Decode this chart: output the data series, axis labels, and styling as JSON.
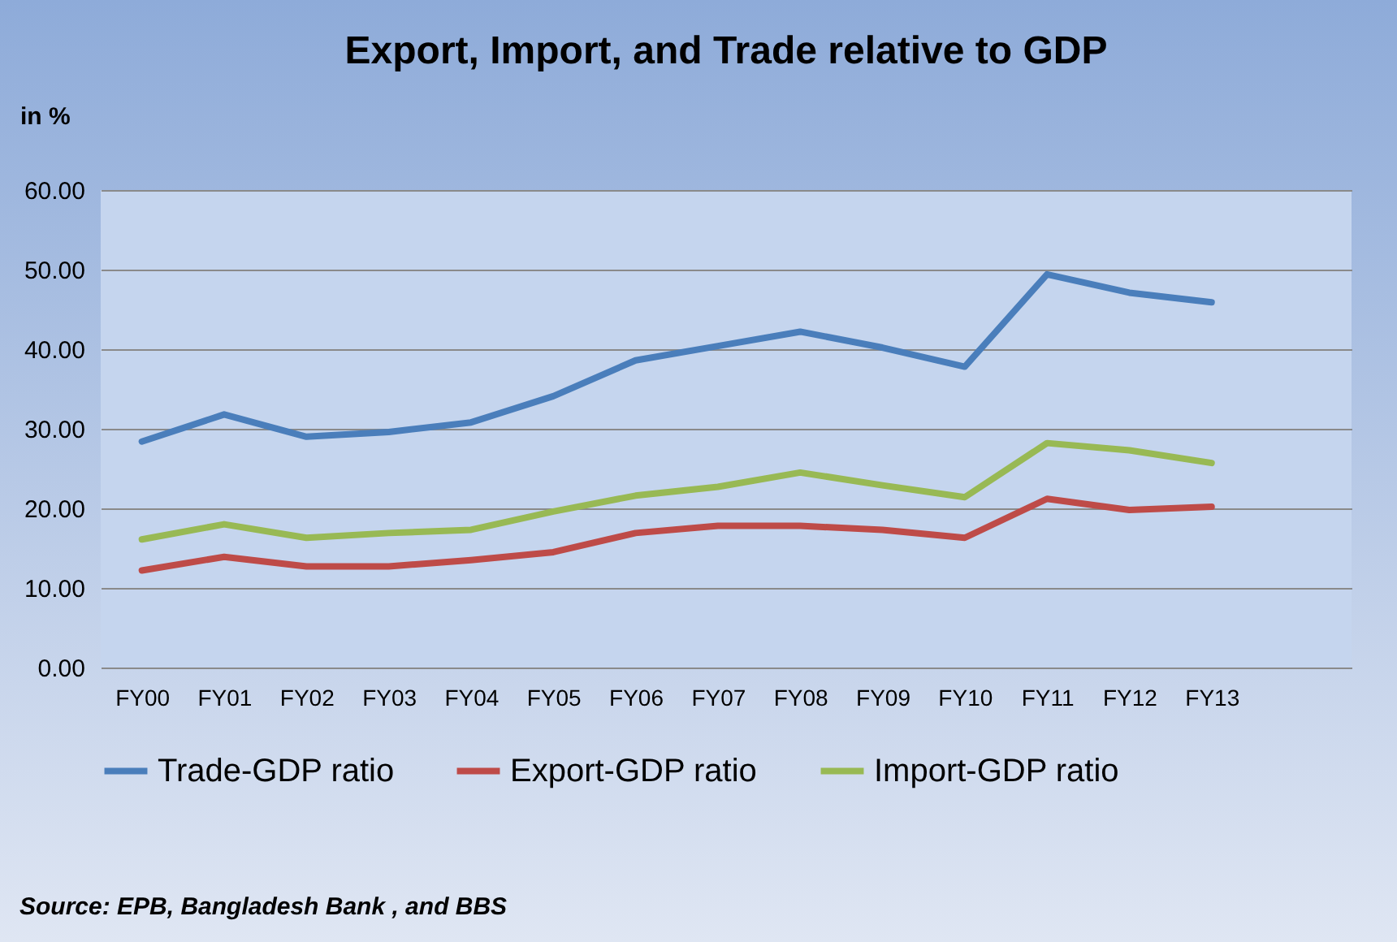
{
  "chart_data": {
    "type": "line",
    "title": "Export, Import, and Trade relative to GDP",
    "ylabel": "in %",
    "categories": [
      "FY00",
      "FY01",
      "FY02",
      "FY03",
      "FY04",
      "FY05",
      "FY06",
      "FY07",
      "FY08",
      "FY09",
      "FY10",
      "FY11",
      "FY12",
      "FY13"
    ],
    "series": [
      {
        "name": "Trade-GDP ratio",
        "color": "#4a7ebb",
        "values": [
          28.4,
          31.8,
          29.0,
          29.6,
          30.8,
          34.1,
          38.6,
          40.4,
          42.2,
          40.2,
          37.8,
          49.4,
          47.1,
          45.9
        ]
      },
      {
        "name": "Export-GDP ratio",
        "color": "#be4b48",
        "values": [
          12.2,
          13.9,
          12.7,
          12.7,
          13.5,
          14.5,
          16.9,
          17.8,
          17.8,
          17.3,
          16.3,
          21.2,
          19.8,
          20.2
        ]
      },
      {
        "name": "Import-GDP ratio",
        "color": "#98b954",
        "values": [
          16.1,
          18.0,
          16.3,
          16.9,
          17.3,
          19.6,
          21.6,
          22.7,
          24.5,
          22.9,
          21.4,
          28.2,
          27.3,
          25.7
        ]
      }
    ],
    "ylim": [
      0,
      60
    ],
    "yticks": [
      {
        "value": 0,
        "label": "0.00"
      },
      {
        "value": 10,
        "label": "10.00"
      },
      {
        "value": 20,
        "label": "20.00"
      },
      {
        "value": 30,
        "label": "30.00"
      },
      {
        "value": 40,
        "label": "40.00"
      },
      {
        "value": 50,
        "label": "50.00"
      },
      {
        "value": 60,
        "label": "60.00"
      }
    ],
    "grid": "y",
    "legend": "bottom",
    "marker": "none",
    "line_style": "solid",
    "annotations": [
      "Source: EPB, Bangladesh Bank , and BBS"
    ]
  }
}
